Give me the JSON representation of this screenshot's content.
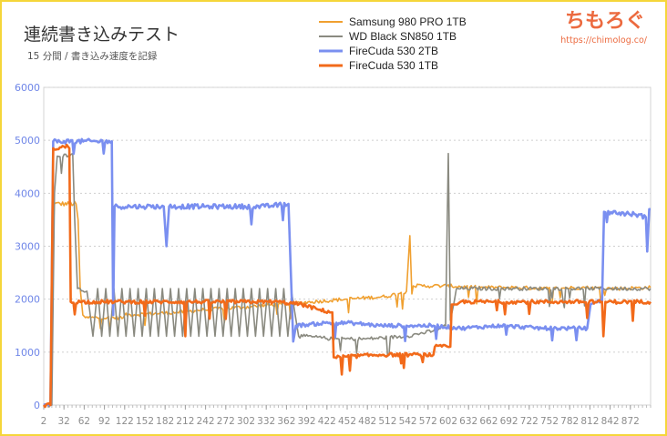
{
  "chart_data": {
    "type": "line",
    "title": "連続書き込みテスト",
    "subtitle": "15 分間 / 書き込み速度を記録",
    "xlabel": "",
    "ylabel": "",
    "xlim": [
      2,
      902
    ],
    "ylim": [
      0,
      6000
    ],
    "y_ticks": [
      "0",
      "1000",
      "2000",
      "3000",
      "4000",
      "5000",
      "6000"
    ],
    "x_ticks": [
      "2",
      "32",
      "62",
      "92",
      "122",
      "152",
      "182",
      "212",
      "242",
      "272",
      "302",
      "332",
      "362",
      "392",
      "422",
      "452",
      "482",
      "512",
      "542",
      "572",
      "602",
      "632",
      "662",
      "692",
      "722",
      "752",
      "782",
      "812",
      "842",
      "872"
    ],
    "grid": true,
    "legend_position": "top-right",
    "series": [
      {
        "name": "Samsung 980 PRO 1TB",
        "color": "#f0a030",
        "points": [
          [
            2,
            0
          ],
          [
            12,
            0
          ],
          [
            15,
            3000
          ],
          [
            18,
            3800
          ],
          [
            50,
            3800
          ],
          [
            53,
            3500
          ],
          [
            56,
            2200
          ],
          [
            60,
            1700
          ],
          [
            64,
            1650
          ],
          [
            120,
            1650
          ],
          [
            122,
            1700
          ],
          [
            200,
            1750
          ],
          [
            240,
            1800
          ],
          [
            300,
            1850
          ],
          [
            350,
            1900
          ],
          [
            400,
            1950
          ],
          [
            450,
            2000
          ],
          [
            510,
            2050
          ],
          [
            540,
            2150
          ],
          [
            545,
            3200
          ],
          [
            548,
            2100
          ],
          [
            550,
            2250
          ],
          [
            600,
            2250
          ],
          [
            650,
            2220
          ],
          [
            700,
            2220
          ],
          [
            750,
            2200
          ],
          [
            800,
            2220
          ],
          [
            850,
            2200
          ],
          [
            902,
            2220
          ]
        ]
      },
      {
        "name": "WD Black SN850 1TB",
        "color": "#8a8a80",
        "points": [
          [
            2,
            0
          ],
          [
            14,
            0
          ],
          [
            18,
            4000
          ],
          [
            22,
            4700
          ],
          [
            45,
            4750
          ],
          [
            48,
            3500
          ],
          [
            52,
            2200
          ],
          [
            66,
            2150
          ],
          [
            70,
            1800
          ],
          [
            75,
            1300
          ],
          [
            82,
            2200
          ],
          [
            88,
            1300
          ],
          [
            94,
            2200
          ],
          [
            100,
            1300
          ],
          [
            106,
            2200
          ],
          [
            112,
            1300
          ],
          [
            118,
            2200
          ],
          [
            124,
            1300
          ],
          [
            130,
            2200
          ],
          [
            136,
            1300
          ],
          [
            142,
            2200
          ],
          [
            148,
            1300
          ],
          [
            154,
            2200
          ],
          [
            160,
            1300
          ],
          [
            166,
            2200
          ],
          [
            172,
            1300
          ],
          [
            178,
            2200
          ],
          [
            184,
            1300
          ],
          [
            190,
            2200
          ],
          [
            196,
            1300
          ],
          [
            202,
            2200
          ],
          [
            208,
            1300
          ],
          [
            214,
            2200
          ],
          [
            220,
            1300
          ],
          [
            226,
            2200
          ],
          [
            232,
            1300
          ],
          [
            238,
            2200
          ],
          [
            244,
            1300
          ],
          [
            250,
            2200
          ],
          [
            256,
            1300
          ],
          [
            262,
            2200
          ],
          [
            268,
            1300
          ],
          [
            274,
            2200
          ],
          [
            280,
            1300
          ],
          [
            286,
            2200
          ],
          [
            292,
            1300
          ],
          [
            298,
            2200
          ],
          [
            304,
            1300
          ],
          [
            310,
            2200
          ],
          [
            316,
            1300
          ],
          [
            322,
            2200
          ],
          [
            328,
            1300
          ],
          [
            334,
            2200
          ],
          [
            340,
            1300
          ],
          [
            346,
            2200
          ],
          [
            352,
            1300
          ],
          [
            358,
            2200
          ],
          [
            364,
            1300
          ],
          [
            370,
            2100
          ],
          [
            380,
            1300
          ],
          [
            390,
            1300
          ],
          [
            430,
            1250
          ],
          [
            480,
            1250
          ],
          [
            540,
            1300
          ],
          [
            560,
            1350
          ],
          [
            580,
            1400
          ],
          [
            598,
            1500
          ],
          [
            602,
            4750
          ],
          [
            605,
            1600
          ],
          [
            610,
            1900
          ],
          [
            614,
            2200
          ],
          [
            700,
            2200
          ],
          [
            800,
            2200
          ],
          [
            902,
            2200
          ]
        ]
      },
      {
        "name": "FireCuda 530 2TB",
        "color": "#7a8ff0",
        "points": [
          [
            2,
            0
          ],
          [
            12,
            0
          ],
          [
            16,
            4980
          ],
          [
            103,
            4980
          ],
          [
            105,
            1700
          ],
          [
            107,
            3750
          ],
          [
            150,
            3750
          ],
          [
            180,
            3750
          ],
          [
            184,
            3000
          ],
          [
            188,
            3750
          ],
          [
            250,
            3750
          ],
          [
            330,
            3750
          ],
          [
            365,
            3800
          ],
          [
            372,
            1200
          ],
          [
            376,
            1500
          ],
          [
            420,
            1550
          ],
          [
            460,
            1550
          ],
          [
            500,
            1500
          ],
          [
            540,
            1500
          ],
          [
            580,
            1500
          ],
          [
            620,
            1450
          ],
          [
            680,
            1500
          ],
          [
            740,
            1450
          ],
          [
            790,
            1450
          ],
          [
            808,
            1450
          ],
          [
            813,
            1900
          ],
          [
            820,
            1950
          ],
          [
            830,
            1950
          ],
          [
            833,
            3650
          ],
          [
            880,
            3600
          ],
          [
            895,
            3550
          ],
          [
            897,
            2900
          ],
          [
            900,
            3700
          ],
          [
            902,
            3700
          ]
        ]
      },
      {
        "name": "FireCuda 530 1TB",
        "color": "#f26a1a",
        "points": [
          [
            2,
            0
          ],
          [
            12,
            0
          ],
          [
            16,
            4850
          ],
          [
            38,
            4880
          ],
          [
            40,
            4850
          ],
          [
            42,
            1950
          ],
          [
            80,
            1950
          ],
          [
            150,
            1950
          ],
          [
            210,
            1950
          ],
          [
            212,
            1300
          ],
          [
            214,
            1950
          ],
          [
            280,
            1950
          ],
          [
            350,
            1950
          ],
          [
            385,
            1900
          ],
          [
            410,
            1800
          ],
          [
            430,
            1750
          ],
          [
            432,
            900
          ],
          [
            500,
            950
          ],
          [
            560,
            950
          ],
          [
            580,
            950
          ],
          [
            582,
            1100
          ],
          [
            605,
            1100
          ],
          [
            607,
            1900
          ],
          [
            615,
            1900
          ],
          [
            620,
            1950
          ],
          [
            700,
            1950
          ],
          [
            780,
            1950
          ],
          [
            830,
            1950
          ],
          [
            832,
            1300
          ],
          [
            835,
            1950
          ],
          [
            902,
            1950
          ]
        ]
      }
    ]
  },
  "logo": {
    "text": "ちもろぐ",
    "url": "https://chimolog.co/"
  }
}
